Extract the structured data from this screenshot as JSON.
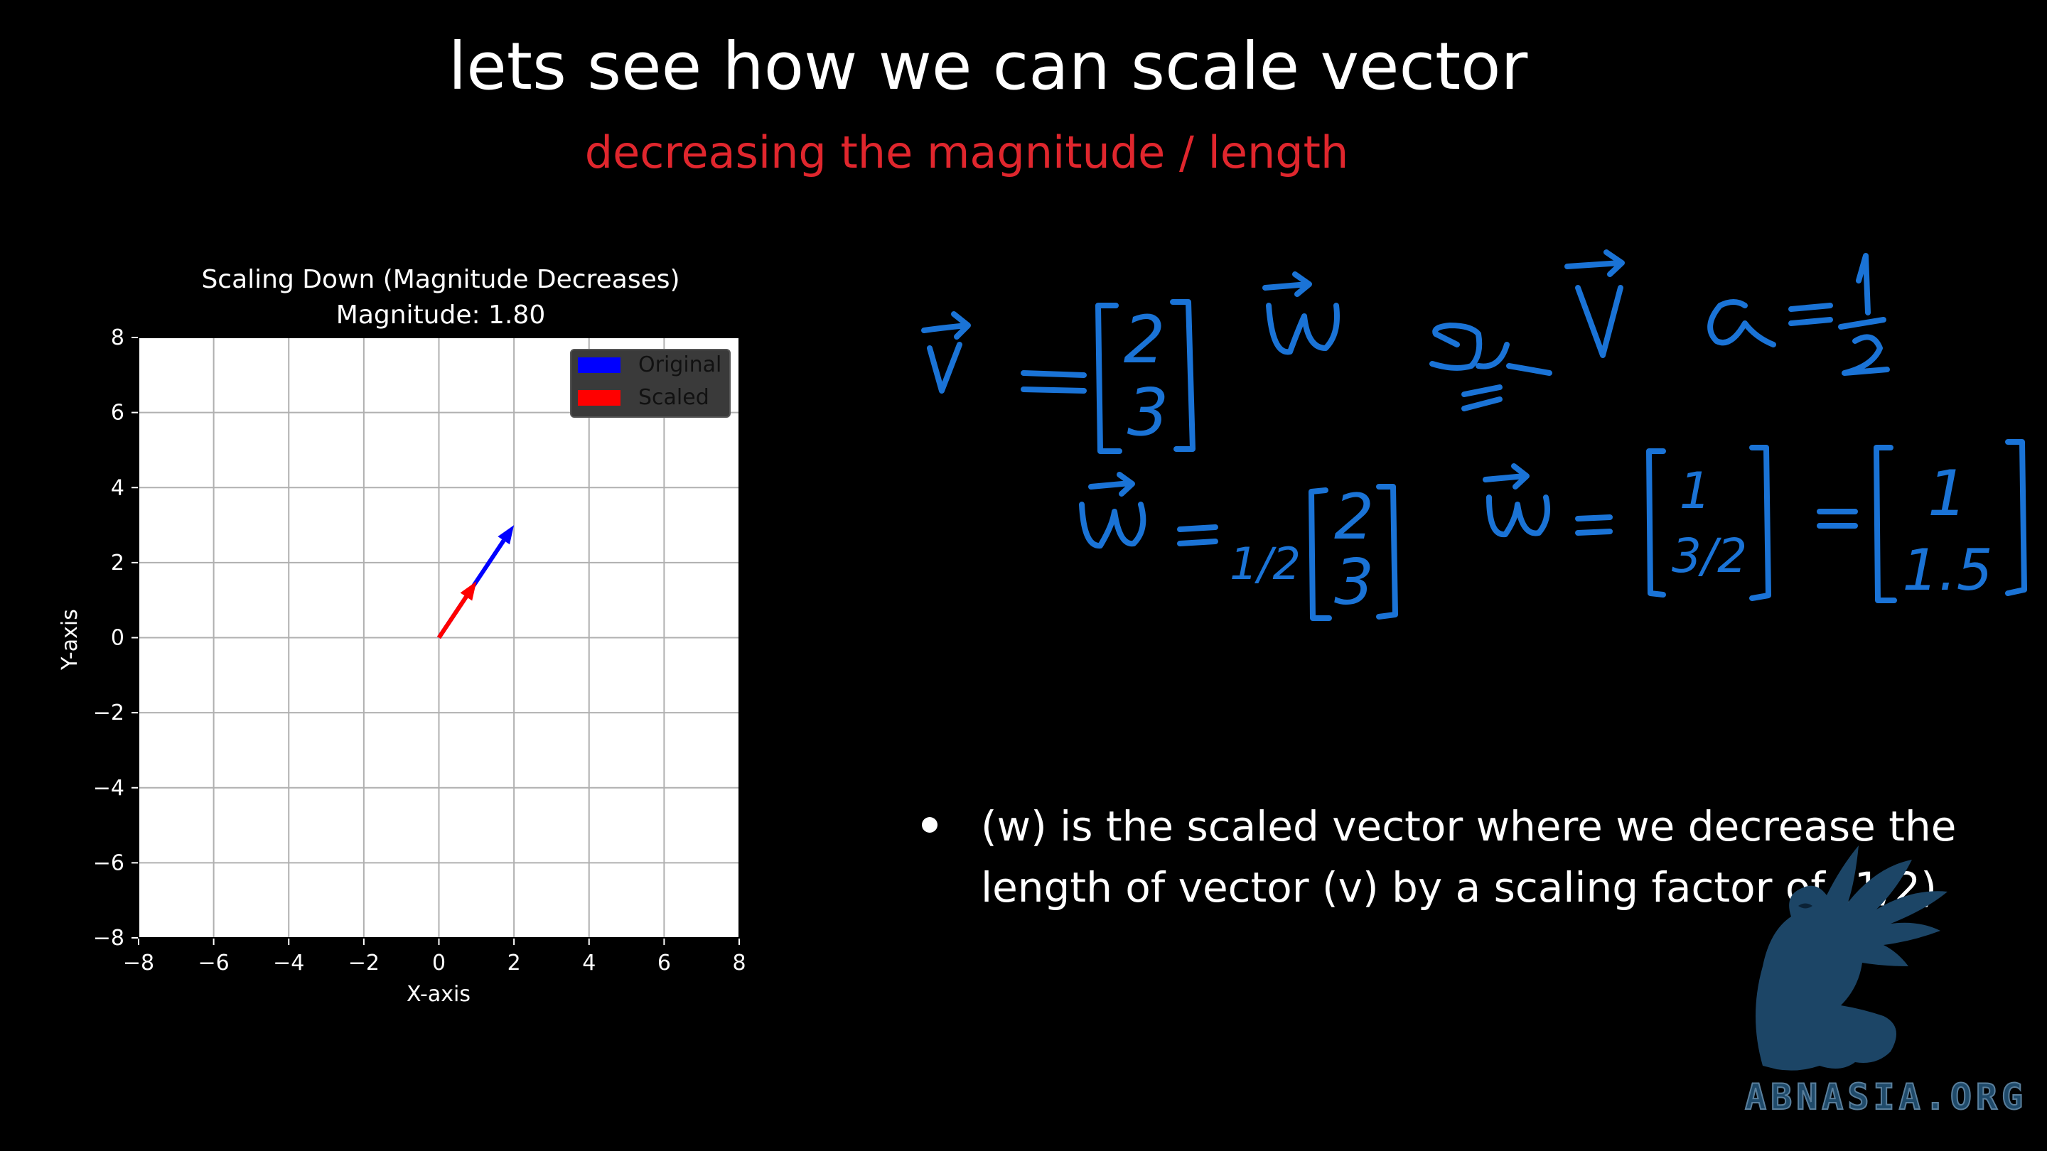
{
  "slide": {
    "title": "lets see how we can scale vector",
    "subtitle": "decreasing the magnitude / length",
    "subtitle_color": "#e0262d",
    "bullet": "(w) is the scaled vector where we decrease the length of vector (v) by a scaling factor of (1/2)",
    "logo_text": "ABNASIA.ORG"
  },
  "chart_data": {
    "type": "quiver",
    "title": "Scaling Down (Magnitude Decreases)",
    "subtitle": "Magnitude: 1.80",
    "xlabel": "X-axis",
    "ylabel": "Y-axis",
    "xlim": [
      -8,
      8
    ],
    "ylim": [
      -8,
      8
    ],
    "xticks": [
      "−8",
      "−6",
      "−4",
      "−2",
      "0",
      "2",
      "4",
      "6",
      "8"
    ],
    "yticks": [
      "8",
      "6",
      "4",
      "2",
      "0",
      "−2",
      "−4",
      "−6",
      "−8"
    ],
    "grid": true,
    "legend": "top-right",
    "series": [
      {
        "name": "Original",
        "color": "#0000ff",
        "x": [
          0,
          2
        ],
        "y": [
          0,
          3
        ]
      },
      {
        "name": "Scaled",
        "color": "#ff0000",
        "x": [
          0,
          1
        ],
        "y": [
          0,
          1.5
        ]
      }
    ]
  },
  "handwritten": {
    "ink_color": "#1a73d6",
    "v": [
      "2",
      "3"
    ],
    "alpha": "1/2",
    "w_step1": [
      "2",
      "3"
    ],
    "w_step2": [
      "1",
      "3/2"
    ],
    "w_result": [
      "1",
      "1.5"
    ]
  }
}
